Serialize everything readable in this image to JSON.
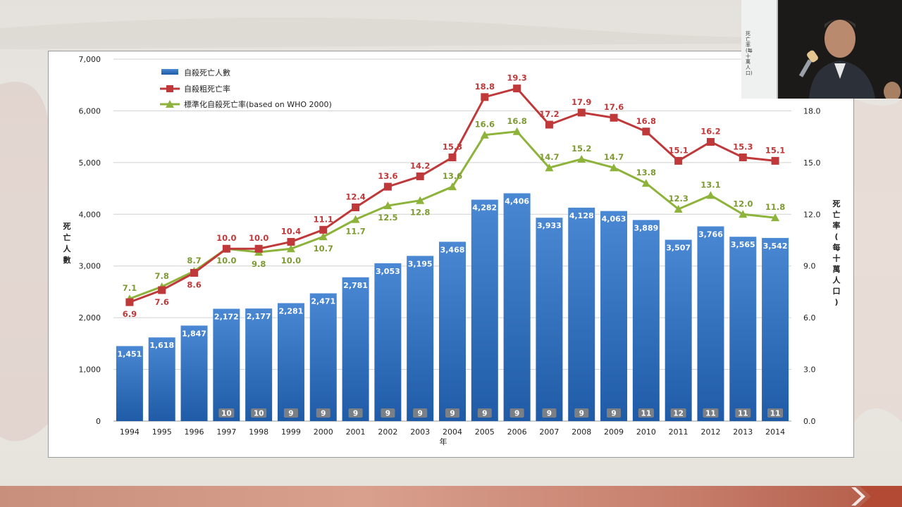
{
  "slide": {
    "inset_caption": "死亡率(每十萬人口)"
  },
  "chart_data": {
    "type": "bar",
    "categories": [
      "1994",
      "1995",
      "1996",
      "1997",
      "1998",
      "1999",
      "2000",
      "2001",
      "2002",
      "2003",
      "2004",
      "2005",
      "2006",
      "2007",
      "2008",
      "2009",
      "2010",
      "2011",
      "2012",
      "2013",
      "2014"
    ],
    "xlabel": "年",
    "ylabel": "死亡人數",
    "y2label": "死亡率(每十萬人口)",
    "ylim": [
      0,
      7000
    ],
    "y2lim": [
      0,
      21
    ],
    "y_ticks": [
      "0",
      "1,000",
      "2,000",
      "3,000",
      "4,000",
      "5,000",
      "6,000",
      "7,000"
    ],
    "y2_ticks": [
      "0.0",
      "3.0",
      "6.0",
      "9.0",
      "12.0",
      "15.0",
      "18.0"
    ],
    "grid": true,
    "legend_position": "top-left",
    "series": [
      {
        "name": "自殺死亡人數",
        "type": "bar",
        "axis": "left",
        "color": "#3a78c7",
        "values": [
          1451,
          1618,
          1847,
          2172,
          2177,
          2281,
          2471,
          2781,
          3053,
          3195,
          3468,
          4282,
          4406,
          3933,
          4128,
          4063,
          3889,
          3507,
          3766,
          3565,
          3542
        ],
        "labels": [
          "1,451",
          "1,618",
          "1,847",
          "2,172",
          "2,177",
          "2,281",
          "2,471",
          "2,781",
          "3,053",
          "3,195",
          "3,468",
          "4,282",
          "4,406",
          "3,933",
          "4,128",
          "4,063",
          "3,889",
          "3,507",
          "3,766",
          "3,565",
          "3,542"
        ]
      },
      {
        "name": "自殺粗死亡率",
        "type": "line",
        "axis": "right",
        "marker": "square",
        "color": "#c0393a",
        "values": [
          6.9,
          7.6,
          8.6,
          10.0,
          10.0,
          10.4,
          11.1,
          12.4,
          13.6,
          14.2,
          15.3,
          18.8,
          19.3,
          17.2,
          17.9,
          17.6,
          16.8,
          15.1,
          16.2,
          15.3,
          15.1
        ],
        "labels": [
          "6.9",
          "7.6",
          "8.6",
          "10.0",
          "10.0",
          "10.4",
          "11.1",
          "12.4",
          "13.6",
          "14.2",
          "15.3",
          "18.8",
          "19.3",
          "17.2",
          "17.9",
          "17.6",
          "16.8",
          "15.1",
          "16.2",
          "15.3",
          "15.1"
        ]
      },
      {
        "name": "標準化自殺死亡率(based on WHO 2000)",
        "type": "line",
        "axis": "right",
        "marker": "triangle",
        "color": "#8db33a",
        "values": [
          7.1,
          7.8,
          8.7,
          10.0,
          9.8,
          10.0,
          10.7,
          11.7,
          12.5,
          12.8,
          13.6,
          16.6,
          16.8,
          14.7,
          15.2,
          14.7,
          13.8,
          12.3,
          13.1,
          12.0,
          11.8
        ],
        "labels": [
          "7.1",
          "7.8",
          "8.7",
          "10.0",
          "9.8",
          "10.0",
          "10.7",
          "11.7",
          "12.5",
          "12.8",
          "13.6",
          "16.6",
          "16.8",
          "14.7",
          "15.2",
          "14.7",
          "13.8",
          "12.3",
          "13.1",
          "12.0",
          "11.8"
        ]
      }
    ],
    "rank_badges": [
      "",
      "",
      "",
      "10",
      "10",
      "9",
      "9",
      "9",
      "9",
      "9",
      "9",
      "9",
      "9",
      "9",
      "9",
      "9",
      "11",
      "12",
      "11",
      "11",
      "11"
    ]
  }
}
